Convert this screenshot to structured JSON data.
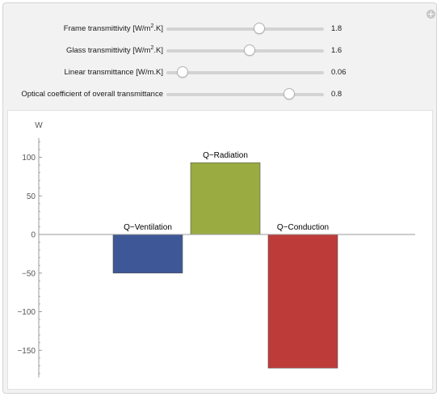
{
  "controls": [
    {
      "label_pre": "Frame transmittivity [W/m",
      "label_sup": "2",
      "label_post": ".K]",
      "value": "1.8",
      "fraction": 0.59
    },
    {
      "label_pre": "Glass transmittivity [W/m",
      "label_sup": "2",
      "label_post": ".K]",
      "value": "1.6",
      "fraction": 0.53
    },
    {
      "label_pre": "Linear transmittance [W/m.K]",
      "label_sup": "",
      "label_post": "",
      "value": "0.06",
      "fraction": 0.1
    },
    {
      "label_pre": "Optical coefficient of overall transmittance",
      "label_sup": "",
      "label_post": "",
      "value": "0.8",
      "fraction": 0.78
    }
  ],
  "chart_data": {
    "type": "bar",
    "ylabel": "W",
    "ylim": [
      -185,
      125
    ],
    "yticks": [
      100,
      50,
      0,
      -50,
      -100,
      -150
    ],
    "ytick_labels": [
      "100",
      "50",
      "0",
      "−50",
      "−100",
      "−150"
    ],
    "categories": [
      "Q−Ventilation",
      "Q−Radiation",
      "Q−Conduction"
    ],
    "values": [
      -50,
      93,
      -173
    ],
    "colors": [
      "#3e5796",
      "#9aab41",
      "#bd3c3a"
    ]
  }
}
